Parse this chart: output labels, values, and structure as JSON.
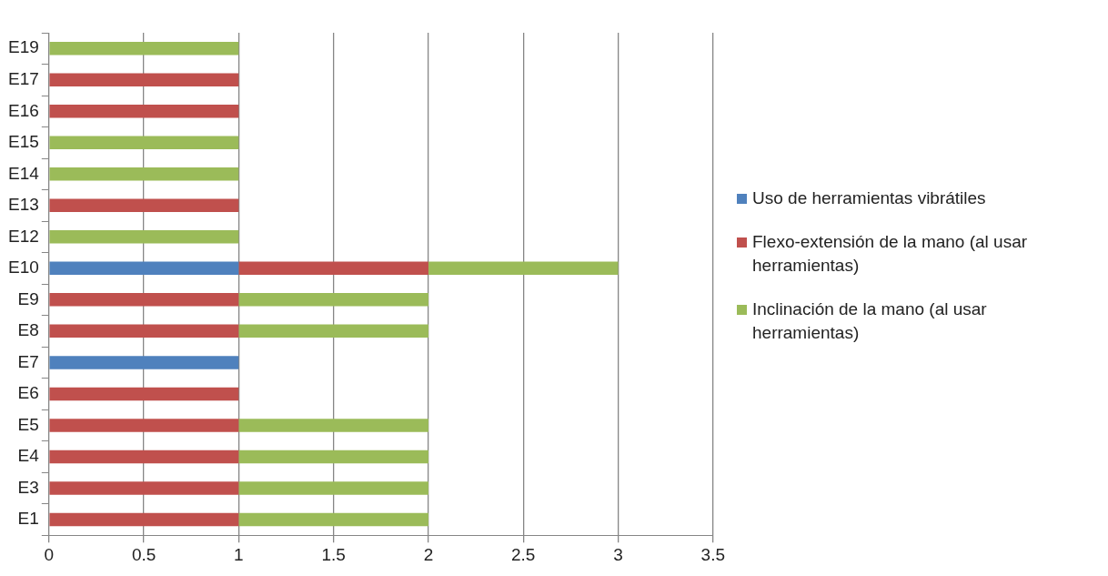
{
  "chart_data": {
    "type": "bar",
    "orientation": "horizontal",
    "stacked": true,
    "categories": [
      "E19",
      "E17",
      "E16",
      "E15",
      "E14",
      "E13",
      "E12",
      "E10",
      "E9",
      "E8",
      "E7",
      "E6",
      "E5",
      "E4",
      "E3",
      "E1"
    ],
    "series": [
      {
        "name": "Uso de herramientas vibrátiles",
        "color": "#4f81bd",
        "values": [
          0,
          0,
          0,
          0,
          0,
          0,
          0,
          1,
          0,
          0,
          1,
          0,
          0,
          0,
          0,
          0
        ]
      },
      {
        "name": "Flexo-extensión de la mano (al usar herramientas)",
        "color": "#c0504d",
        "values": [
          0,
          1,
          1,
          0,
          0,
          1,
          0,
          1,
          1,
          1,
          0,
          1,
          1,
          1,
          1,
          1
        ]
      },
      {
        "name": "Inclinación de la mano (al usar herramientas)",
        "color": "#9bbb59",
        "values": [
          1,
          0,
          0,
          1,
          1,
          0,
          1,
          1,
          1,
          1,
          0,
          0,
          1,
          1,
          1,
          1
        ]
      }
    ],
    "xlim": [
      0,
      3.5
    ],
    "xticks": [
      0,
      0.5,
      1,
      1.5,
      2,
      2.5,
      3,
      3.5
    ],
    "grid": "x",
    "legend": "right"
  }
}
